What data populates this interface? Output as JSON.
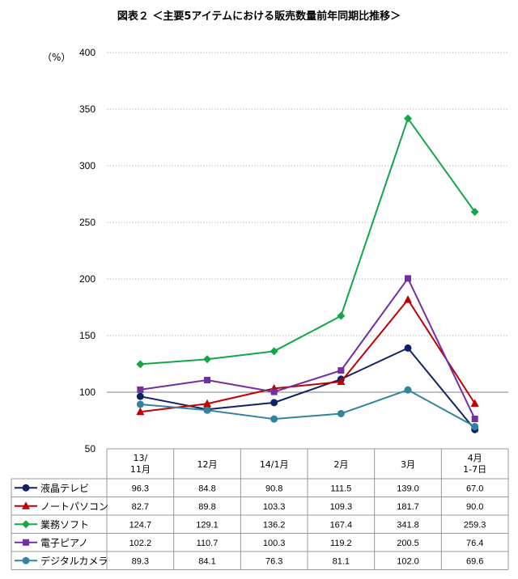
{
  "title": "図表２ ＜主要5アイテムにおける販売数量前年同期比推移＞",
  "colors": {
    "grid": "#b8b8b8",
    "axis": "#7f7f7f",
    "table_border": "#9a9a9a"
  },
  "chart_data": {
    "type": "line",
    "unit_label": "（%）",
    "ylim": [
      50,
      400
    ],
    "yticks": [
      50,
      100,
      150,
      200,
      250,
      300,
      350,
      400
    ],
    "categories": [
      [
        "13/",
        "11月"
      ],
      [
        "12月"
      ],
      [
        "14/1月"
      ],
      [
        "2月"
      ],
      [
        "3月"
      ],
      [
        "4月",
        "1-7日"
      ]
    ],
    "series": [
      {
        "name": "液晶テレビ",
        "color": "#0f2167",
        "marker": "circle",
        "values": [
          96.3,
          84.8,
          90.8,
          111.5,
          139.0,
          67.0
        ],
        "labels": [
          "96.3",
          "84.8",
          "90.8",
          "111.5",
          "139.0",
          "67.0"
        ]
      },
      {
        "name": "ノートパソコン",
        "color": "#c00000",
        "marker": "triangle",
        "values": [
          82.7,
          89.8,
          103.3,
          109.3,
          181.7,
          90.0
        ],
        "labels": [
          "82.7",
          "89.8",
          "103.3",
          "109.3",
          "181.7",
          "90.0"
        ]
      },
      {
        "name": "業務ソフト",
        "color": "#12a54a",
        "marker": "diamond",
        "values": [
          124.7,
          129.1,
          136.2,
          167.4,
          341.8,
          259.3
        ],
        "labels": [
          "124.7",
          "129.1",
          "136.2",
          "167.4",
          "341.8",
          "259.3"
        ]
      },
      {
        "name": "電子ピアノ",
        "color": "#7030a0",
        "marker": "square",
        "values": [
          102.2,
          110.7,
          100.3,
          119.2,
          200.5,
          76.4
        ],
        "labels": [
          "102.2",
          "110.7",
          "100.3",
          "119.2",
          "200.5",
          "76.4"
        ]
      },
      {
        "name": "デジタルカメラ",
        "color": "#31849b",
        "marker": "circle",
        "values": [
          89.3,
          84.1,
          76.3,
          81.1,
          102.0,
          69.6
        ],
        "labels": [
          "89.3",
          "84.1",
          "76.3",
          "81.1",
          "102.0",
          "69.6"
        ]
      }
    ]
  }
}
